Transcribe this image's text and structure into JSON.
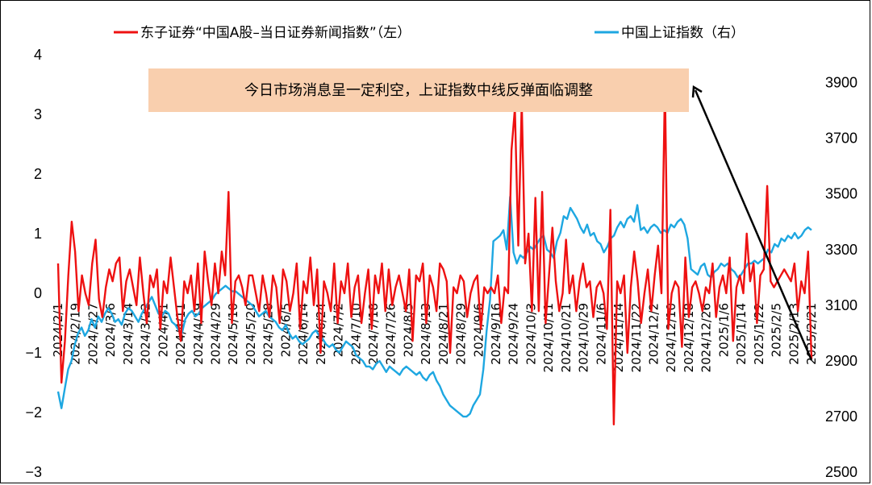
{
  "chart_data": {
    "type": "line",
    "legend_placement": "top",
    "grid": false,
    "colors": {
      "news_index": "#ee1111",
      "sse": "#1ea7e1",
      "note_bg": "#f9cfae",
      "arrow": "#000000"
    },
    "note": "今日市场消息呈一定利空，上证指数中线反弹面临调整",
    "left_axis": {
      "ylim": [
        -3,
        4
      ],
      "ticks": [
        "4",
        "3",
        "2",
        "1",
        "0",
        "−1",
        "−2",
        "−3"
      ]
    },
    "right_axis": {
      "ylim": [
        2500,
        3900
      ],
      "ticks": [
        "3900",
        "3700",
        "3500",
        "3300",
        "3100",
        "2900",
        "2700",
        "2500"
      ]
    },
    "x_ticks": [
      "2024/2/1",
      "2024/2/19",
      "2024/2/27",
      "2024/3/6",
      "2024/3/14",
      "2024/3/22",
      "2024/4/1",
      "2024/4/11",
      "2024/4/19",
      "2024/4/29",
      "2024/5/10",
      "2024/5/20",
      "2024/5/28",
      "2024/6/5",
      "2024/6/14",
      "2024/6/24",
      "2024/7/2",
      "2024/7/10",
      "2024/7/18",
      "2024/7/26",
      "2024/8/5",
      "2024/8/13",
      "2024/8/21",
      "2024/8/29",
      "2024/9/6",
      "2024/9/16",
      "2024/9/24",
      "2024/10/3",
      "2024/10/11",
      "2024/10/21",
      "2024/10/29",
      "2024/11/6",
      "2024/11/14",
      "2024/11/22",
      "2024/12/2",
      "2024/12/10",
      "2024/12/18",
      "2024/12/26",
      "2025/1/6",
      "2025/1/14",
      "2025/1/22",
      "2025/2/5",
      "2025/2/13",
      "2025/2/21"
    ],
    "series": [
      {
        "name": "东子证券“中国A股–当日证券新闻指数”（左）",
        "axis": "left",
        "values": [
          0.5,
          -1.5,
          -0.8,
          0.3,
          1.2,
          0.7,
          -0.3,
          0.3,
          0.0,
          -0.2,
          0.5,
          0.9,
          -0.1,
          -0.4,
          0.1,
          0.4,
          0.2,
          0.5,
          0.6,
          -0.3,
          0.2,
          0.4,
          0.1,
          -0.2,
          0.6,
          0.0,
          -0.5,
          0.3,
          0.1,
          0.4,
          -0.6,
          0.2,
          0.0,
          0.6,
          0.1,
          -0.4,
          -0.8,
          0.2,
          0.0,
          0.3,
          -0.3,
          0.5,
          -0.5,
          0.7,
          0.2,
          -0.2,
          0.5,
          0.0,
          0.7,
          0.3,
          1.7,
          -0.5,
          0.2,
          0.3,
          0.1,
          -0.2,
          0.3,
          0.3,
          0.0,
          -0.3,
          0.3,
          0.0,
          -0.4,
          0.3,
          0.1,
          -0.5,
          0.4,
          0.2,
          -0.3,
          0.0,
          0.5,
          -0.6,
          0.2,
          0.0,
          0.6,
          -0.2,
          0.4,
          -1.0,
          0.2,
          0.0,
          -0.3,
          0.5,
          -0.5,
          0.2,
          0.0,
          0.5,
          -0.4,
          0.1,
          0.3,
          -0.5,
          0.0,
          0.4,
          -0.6,
          0.3,
          0.0,
          0.5,
          -0.3,
          0.4,
          -0.2,
          0.1,
          0.3,
          0.0,
          -0.3,
          0.4,
          -0.8,
          0.3,
          0.2,
          0.5,
          -0.5,
          0.3,
          0.1,
          -0.3,
          0.5,
          0.4,
          0.2,
          -1.0,
          0.1,
          0.0,
          0.3,
          0.2,
          -0.4,
          0.0,
          0.2,
          0.3,
          -0.6,
          0.1,
          0.0,
          0.1,
          0.0,
          0.3,
          -0.5,
          0.1,
          0.0,
          2.4,
          3.1,
          0.8,
          3.2,
          0.5,
          1.0,
          -0.3,
          1.6,
          -0.3,
          1.7,
          -0.5,
          0.3,
          1.1,
          0.2,
          -0.3,
          0.0,
          0.9,
          0.0,
          0.3,
          -0.3,
          0.2,
          0.5,
          0.1,
          0.2,
          -0.4,
          0.1,
          0.2,
          0.0,
          -0.6,
          1.4,
          -2.2,
          0.2,
          0.0,
          0.3,
          -1.0,
          0.1,
          0.7,
          0.2,
          -0.5,
          0.0,
          0.4,
          -0.3,
          0.3,
          0.8,
          0.0,
          3.5,
          -0.6,
          0.0,
          0.2,
          0.1,
          -0.9,
          0.6,
          -0.4,
          0.1,
          0.2,
          0.0,
          -0.3,
          0.1,
          0.0,
          0.5,
          -0.4,
          0.1,
          0.3,
          0.0,
          0.6,
          -0.8,
          0.1,
          0.3,
          0.0,
          1.0,
          0.2,
          0.5,
          -0.5,
          0.3,
          0.4,
          1.8,
          0.2,
          0.1,
          0.2,
          0.3,
          0.4,
          0.3,
          0.2,
          0.5,
          -0.3,
          0.2,
          0.0,
          0.7,
          -1.1
        ]
      },
      {
        "name": "中国上证指数（右）",
        "axis": "right",
        "values": [
          2790,
          2730,
          2800,
          2870,
          2900,
          2960,
          3000,
          3020,
          2990,
          3010,
          3050,
          3020,
          3060,
          3040,
          3070,
          3090,
          3070,
          3040,
          3050,
          3030,
          3070,
          3090,
          3080,
          3060,
          3040,
          3070,
          3090,
          3110,
          3130,
          3100,
          3070,
          3060,
          3080,
          3070,
          3040,
          3030,
          3010,
          3000,
          3050,
          3070,
          3080,
          3060,
          3070,
          3090,
          3100,
          3110,
          3120,
          3140,
          3150,
          3160,
          3170,
          3160,
          3150,
          3150,
          3140,
          3130,
          3120,
          3110,
          3100,
          3080,
          3060,
          3070,
          3080,
          3060,
          3050,
          3040,
          3020,
          3010,
          3030,
          3000,
          2980,
          2990,
          2970,
          2960,
          2970,
          2980,
          3000,
          3010,
          2990,
          2980,
          2960,
          2950,
          2960,
          2940,
          2930,
          2950,
          2970,
          2960,
          2950,
          2920,
          2910,
          2900,
          2880,
          2880,
          2870,
          2890,
          2900,
          2880,
          2860,
          2880,
          2870,
          2860,
          2850,
          2870,
          2880,
          2870,
          2860,
          2850,
          2860,
          2840,
          2830,
          2850,
          2860,
          2830,
          2810,
          2780,
          2760,
          2740,
          2730,
          2720,
          2710,
          2700,
          2700,
          2710,
          2740,
          2760,
          2780,
          2870,
          3010,
          3120,
          3330,
          3340,
          3350,
          3370,
          3300,
          3490,
          3290,
          3250,
          3280,
          3270,
          3290,
          3310,
          3300,
          3320,
          3340,
          3350,
          3300,
          3290,
          3270,
          3330,
          3360,
          3420,
          3410,
          3450,
          3430,
          3410,
          3380,
          3360,
          3390,
          3350,
          3360,
          3330,
          3320,
          3290,
          3310,
          3340,
          3350,
          3380,
          3400,
          3380,
          3410,
          3420,
          3400,
          3460,
          3370,
          3380,
          3360,
          3380,
          3390,
          3380,
          3360,
          3370,
          3360,
          3390,
          3380,
          3400,
          3410,
          3390,
          3340,
          3230,
          3220,
          3210,
          3240,
          3250,
          3210,
          3200,
          3220,
          3230,
          3250,
          3240,
          3250,
          3230,
          3220,
          3200,
          3210,
          3230,
          3250,
          3250,
          3260,
          3250,
          3260,
          3270,
          3300,
          3290,
          3320,
          3310,
          3340,
          3330,
          3350,
          3340,
          3360,
          3340,
          3350,
          3370,
          3380,
          3370
        ]
      }
    ]
  }
}
